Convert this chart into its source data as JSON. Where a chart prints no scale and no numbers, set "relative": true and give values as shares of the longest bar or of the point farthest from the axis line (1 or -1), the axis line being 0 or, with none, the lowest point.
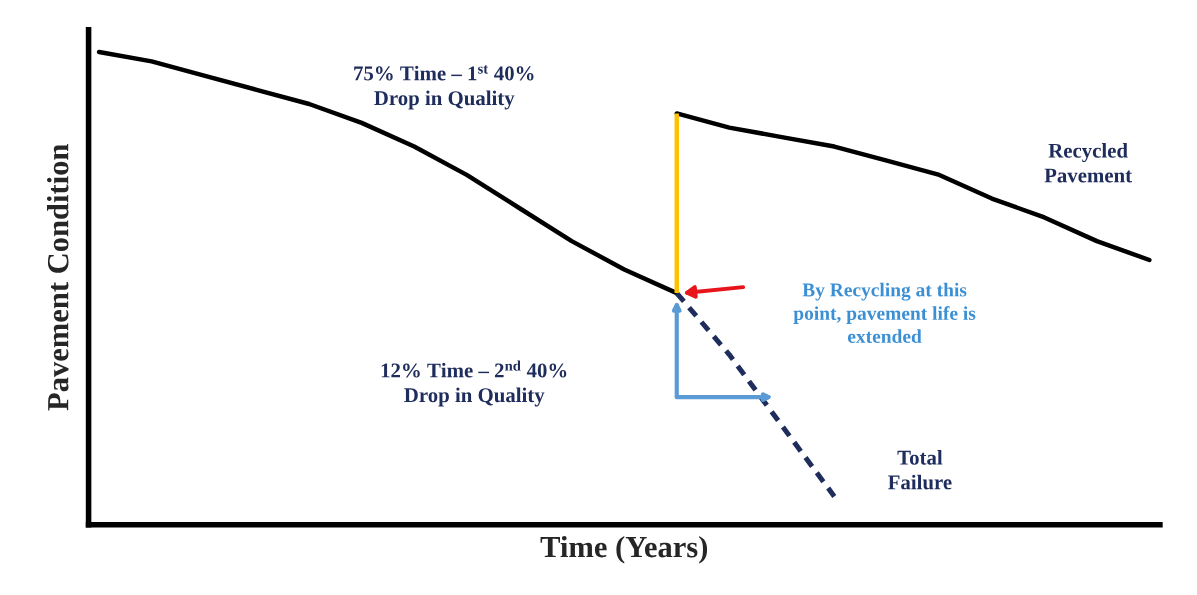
{
  "chart_data": {
    "type": "line",
    "relative": true,
    "xlabel": "Time (Years)",
    "ylabel": "Pavement Condition",
    "tick_labels": false,
    "categories": [
      null,
      null,
      null,
      null,
      null,
      null,
      null,
      null,
      null,
      null,
      null,
      null,
      null,
      null,
      null,
      null,
      null,
      null,
      null,
      null,
      null
    ],
    "series": [
      {
        "color": "#000000",
        "line_style": "solid",
        "values": [
          1.0,
          0.98,
          0.95,
          0.92,
          0.89,
          0.85,
          0.8,
          0.74,
          0.67,
          0.6,
          0.54,
          0.49,
          null,
          null,
          null,
          null,
          null,
          null,
          null,
          null,
          null
        ]
      },
      {
        "color": "#1f2d5c",
        "line_style": "dashed",
        "values": [
          null,
          null,
          null,
          null,
          null,
          null,
          null,
          null,
          null,
          null,
          null,
          0.49,
          0.36,
          0.21,
          0.06,
          null,
          null,
          null,
          null,
          null,
          null
        ]
      },
      {
        "color": "#000000",
        "line_style": "solid",
        "values": [
          null,
          null,
          null,
          null,
          null,
          null,
          null,
          null,
          null,
          null,
          null,
          0.87,
          0.84,
          0.82,
          0.8,
          0.77,
          0.74,
          0.69,
          0.65,
          0.6,
          0.56
        ]
      }
    ],
    "annotations": [
      "75% Time – 1$^{st}$ 40%\nDrop in Quality",
      "12% Time – 2$^{nd}$ 40%\nDrop in Quality",
      "Recycled\nPavement",
      "Total\nFailure",
      "By Recycling at this\npoint, pavement life is\nextended"
    ]
  }
}
